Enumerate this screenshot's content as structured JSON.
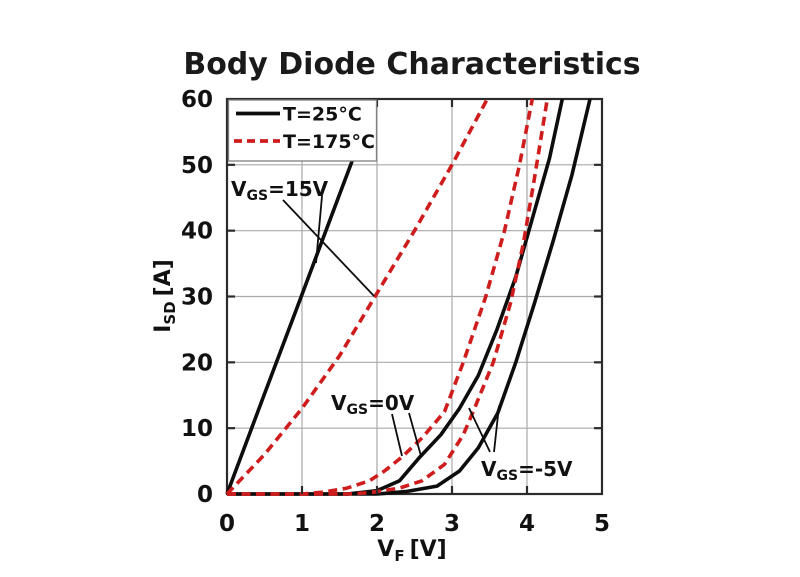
{
  "title": "Body Diode Characteristics",
  "colors": {
    "black_curve": "#0d0d0d",
    "red_curve": "#cf1d1d",
    "grid": "#a9a9a9",
    "frame": "#2b2b2b",
    "legend_border": "#808080",
    "title_text": "#1a1a1a"
  },
  "legend": {
    "items": [
      {
        "label": "T=25°C",
        "style": "solid",
        "color": "#0d0d0d"
      },
      {
        "label": "T=175°C",
        "style": "dashed",
        "color": "#cf1d1d"
      }
    ]
  },
  "axes": {
    "x": {
      "title_main": "V",
      "title_sub": "F",
      "title_unit": "[V]",
      "min": 0,
      "max": 5,
      "ticks": [
        "0",
        "1",
        "2",
        "3",
        "4",
        "5"
      ]
    },
    "y": {
      "title_main": "I",
      "title_sub": "SD",
      "title_unit": "[A]",
      "min": 0,
      "max": 60,
      "ticks": [
        "0",
        "10",
        "20",
        "30",
        "40",
        "50",
        "60"
      ]
    }
  },
  "annotations": [
    {
      "id": "vgs-15v",
      "main": "V",
      "sub": "GS",
      "rest": "=15V",
      "x": 231,
      "baseline": 196,
      "leaders": [
        [
          283,
          200,
          374,
          296
        ],
        [
          322,
          196,
          316,
          263
        ]
      ]
    },
    {
      "id": "vgs-0v",
      "main": "V",
      "sub": "GS",
      "rest": "=0V",
      "x": 331,
      "baseline": 410,
      "leaders": [
        [
          392,
          414,
          402,
          456
        ],
        [
          409,
          413,
          421,
          456
        ]
      ]
    },
    {
      "id": "vgs-minus5v",
      "main": "V",
      "sub": "GS",
      "rest": "=-5V",
      "x": 481,
      "baseline": 476,
      "leaders": [
        [
          490,
          452,
          469,
          408
        ],
        [
          494,
          452,
          499,
          406
        ]
      ]
    }
  ],
  "chart_data": {
    "type": "line",
    "title": "Body Diode Characteristics",
    "xlabel": "VF [V]",
    "ylabel": "ISD [A]",
    "xlim": [
      0,
      5
    ],
    "ylim": [
      0,
      60
    ],
    "grid": true,
    "legend_position": "top-left",
    "series": [
      {
        "name": "VGS=15V, T=25C",
        "vgs": "15V",
        "temperature": "25C",
        "style": "solid",
        "color": "#0d0d0d",
        "points": [
          [
            0,
            0
          ],
          [
            0.5,
            15.2
          ],
          [
            1.0,
            30.3
          ],
          [
            1.5,
            45.5
          ],
          [
            1.98,
            60
          ]
        ]
      },
      {
        "name": "VGS=15V, T=175C",
        "vgs": "15V",
        "temperature": "175C",
        "style": "dashed",
        "color": "#cf1d1d",
        "points": [
          [
            0,
            0
          ],
          [
            0.5,
            6
          ],
          [
            1.0,
            13
          ],
          [
            1.5,
            21
          ],
          [
            2.0,
            30.5
          ],
          [
            2.5,
            40
          ],
          [
            3.0,
            50
          ],
          [
            3.47,
            60
          ]
        ]
      },
      {
        "name": "VGS=0V, T=25C",
        "vgs": "0V",
        "temperature": "25C",
        "style": "solid",
        "color": "#0d0d0d",
        "points": [
          [
            0,
            0
          ],
          [
            1.6,
            0
          ],
          [
            2.0,
            0.5
          ],
          [
            2.3,
            2
          ],
          [
            2.57,
            5.6
          ],
          [
            2.85,
            9
          ],
          [
            3.1,
            13
          ],
          [
            3.35,
            18
          ],
          [
            3.6,
            25
          ],
          [
            3.85,
            33
          ],
          [
            4.1,
            43
          ],
          [
            4.3,
            51
          ],
          [
            4.47,
            60
          ]
        ]
      },
      {
        "name": "VGS=0V, T=175C",
        "vgs": "0V",
        "temperature": "175C",
        "style": "dashed",
        "color": "#cf1d1d",
        "points": [
          [
            0,
            0
          ],
          [
            1.0,
            0
          ],
          [
            1.3,
            0.3
          ],
          [
            1.6,
            0.9
          ],
          [
            1.9,
            2
          ],
          [
            2.1,
            3.5
          ],
          [
            2.33,
            5.6
          ],
          [
            2.6,
            8.5
          ],
          [
            2.9,
            12.5
          ],
          [
            3.15,
            20
          ],
          [
            3.45,
            30
          ],
          [
            3.7,
            40
          ],
          [
            3.9,
            50
          ],
          [
            4.07,
            60
          ]
        ]
      },
      {
        "name": "VGS=-5V, T=25C",
        "vgs": "-5V",
        "temperature": "25C",
        "style": "solid",
        "color": "#0d0d0d",
        "points": [
          [
            0,
            0
          ],
          [
            2.0,
            0
          ],
          [
            2.4,
            0.4
          ],
          [
            2.8,
            1.2
          ],
          [
            3.1,
            3.5
          ],
          [
            3.35,
            7
          ],
          [
            3.61,
            12.3
          ],
          [
            3.85,
            20
          ],
          [
            4.1,
            29
          ],
          [
            4.35,
            38.5
          ],
          [
            4.6,
            48.5
          ],
          [
            4.84,
            60
          ]
        ]
      },
      {
        "name": "VGS=-5V, T=175C",
        "vgs": "-5V",
        "temperature": "175C",
        "style": "dashed",
        "color": "#cf1d1d",
        "points": [
          [
            0,
            0
          ],
          [
            1.6,
            0
          ],
          [
            1.9,
            0.2
          ],
          [
            2.3,
            0.9
          ],
          [
            2.6,
            2
          ],
          [
            2.9,
            4.5
          ],
          [
            3.15,
            9
          ],
          [
            3.3,
            13
          ],
          [
            3.55,
            20
          ],
          [
            3.78,
            29
          ],
          [
            3.95,
            38
          ],
          [
            4.1,
            48
          ],
          [
            4.27,
            60
          ]
        ]
      }
    ]
  }
}
